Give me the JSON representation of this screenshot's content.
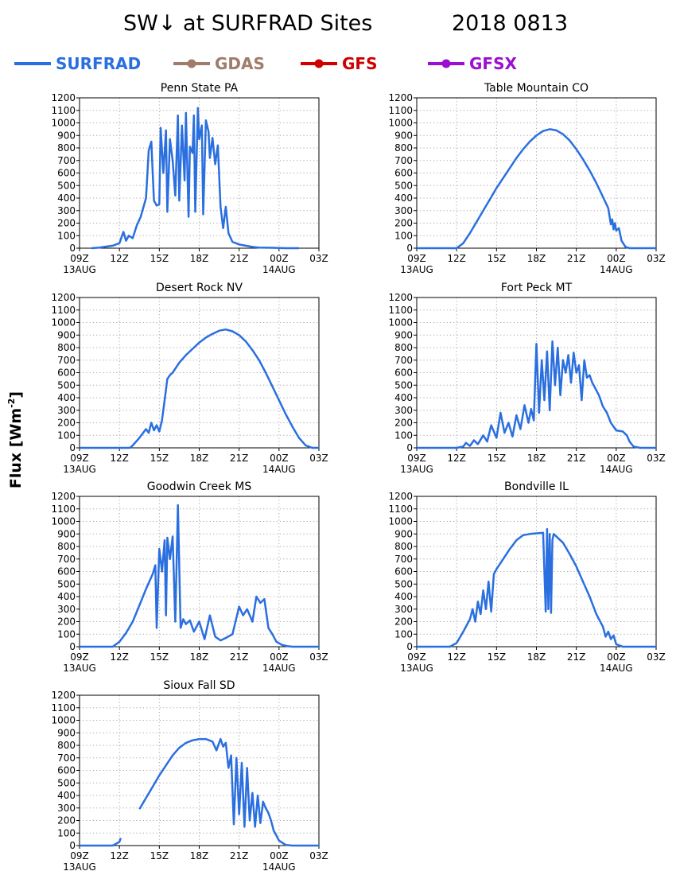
{
  "title": "SW↓ at SURFRAD Sites",
  "date": "2018 0813",
  "ylabel_text": "Flux [Wm",
  "ylabel_sup": "-2",
  "ylabel_close": "]",
  "legend": [
    {
      "name": "SURFRAD",
      "color": "#2a6fdf",
      "marker": false
    },
    {
      "name": "GDAS",
      "color": "#a07c6a",
      "marker": true
    },
    {
      "name": "GFS",
      "color": "#d00000",
      "marker": true
    },
    {
      "name": "GFSX",
      "color": "#9a0fd0",
      "marker": true
    }
  ],
  "colors": {
    "surfrad": "#2a6fdf"
  },
  "chart_data": [
    {
      "type": "line",
      "title": "Penn State PA",
      "x_ticks": [
        "09Z",
        "12Z",
        "15Z",
        "18Z",
        "21Z",
        "00Z",
        "03Z"
      ],
      "x_dates": [
        "13AUG",
        "",
        "",
        "",
        "",
        "14AUG",
        ""
      ],
      "xlim": [
        9,
        27
      ],
      "ylim": [
        0,
        1200
      ],
      "y_ticks": [
        0,
        100,
        200,
        300,
        400,
        500,
        600,
        700,
        800,
        900,
        1000,
        1100,
        1200
      ],
      "series": [
        {
          "name": "SURFRAD",
          "x": [
            9.9,
            10.5,
            11.5,
            12.0,
            12.3,
            12.5,
            12.7,
            13.0,
            13.3,
            13.6,
            14.0,
            14.2,
            14.4,
            14.5,
            14.6,
            14.8,
            15.0,
            15.1,
            15.3,
            15.5,
            15.6,
            15.8,
            16.0,
            16.2,
            16.4,
            16.5,
            16.7,
            16.9,
            17.0,
            17.2,
            17.3,
            17.5,
            17.6,
            17.7,
            17.9,
            18.0,
            18.2,
            18.3,
            18.5,
            18.7,
            18.8,
            19.0,
            19.2,
            19.4,
            19.6,
            19.8,
            20.0,
            20.2,
            20.5,
            21.0,
            21.5,
            22.0,
            22.5,
            23.5,
            24.5,
            25.5
          ],
          "y": [
            0,
            5,
            20,
            40,
            130,
            60,
            100,
            80,
            180,
            250,
            400,
            780,
            850,
            600,
            380,
            340,
            350,
            960,
            600,
            940,
            290,
            870,
            700,
            420,
            1060,
            380,
            980,
            540,
            1080,
            250,
            810,
            760,
            1060,
            290,
            1120,
            870,
            980,
            270,
            1020,
            930,
            720,
            880,
            670,
            820,
            330,
            160,
            330,
            120,
            50,
            30,
            20,
            10,
            5,
            3,
            0,
            0
          ]
        }
      ]
    },
    {
      "type": "line",
      "title": "Table Mountain CO",
      "x_ticks": [
        "09Z",
        "12Z",
        "15Z",
        "18Z",
        "21Z",
        "00Z",
        "03Z"
      ],
      "x_dates": [
        "13AUG",
        "",
        "",
        "",
        "",
        "14AUG",
        ""
      ],
      "xlim": [
        9,
        27
      ],
      "ylim": [
        0,
        1200
      ],
      "y_ticks": [
        0,
        100,
        200,
        300,
        400,
        500,
        600,
        700,
        800,
        900,
        1000,
        1100,
        1200
      ],
      "series": [
        {
          "name": "SURFRAD",
          "x": [
            9.0,
            12.0,
            12.5,
            13.0,
            13.5,
            14.0,
            14.5,
            15.0,
            15.5,
            16.0,
            16.5,
            17.0,
            17.5,
            18.0,
            18.5,
            19.0,
            19.5,
            20.0,
            20.5,
            21.0,
            21.5,
            22.0,
            22.5,
            23.0,
            23.4,
            23.6,
            23.7,
            23.8,
            23.9,
            24.0,
            24.2,
            24.4,
            24.7,
            25.0,
            27.0
          ],
          "y": [
            0,
            0,
            40,
            120,
            210,
            300,
            390,
            480,
            560,
            640,
            720,
            790,
            850,
            900,
            935,
            950,
            940,
            910,
            860,
            790,
            710,
            620,
            520,
            410,
            320,
            190,
            230,
            150,
            200,
            140,
            160,
            60,
            10,
            0,
            0
          ]
        }
      ]
    },
    {
      "type": "line",
      "title": "Desert Rock NV",
      "x_ticks": [
        "09Z",
        "12Z",
        "15Z",
        "18Z",
        "21Z",
        "00Z",
        "03Z"
      ],
      "x_dates": [
        "13AUG",
        "",
        "",
        "",
        "",
        "14AUG",
        ""
      ],
      "xlim": [
        9,
        27
      ],
      "ylim": [
        0,
        1200
      ],
      "y_ticks": [
        0,
        100,
        200,
        300,
        400,
        500,
        600,
        700,
        800,
        900,
        1000,
        1100,
        1200
      ],
      "series": [
        {
          "name": "SURFRAD",
          "x": [
            9.0,
            12.8,
            13.0,
            13.5,
            14.0,
            14.2,
            14.4,
            14.6,
            14.8,
            15.0,
            15.2,
            15.4,
            15.6,
            15.8,
            16.0,
            16.5,
            17.0,
            17.5,
            18.0,
            18.5,
            19.0,
            19.5,
            20.0,
            20.5,
            21.0,
            21.5,
            22.0,
            22.5,
            23.0,
            23.5,
            24.0,
            24.5,
            25.0,
            25.5,
            26.0,
            26.5,
            27.0
          ],
          "y": [
            0,
            0,
            20,
            80,
            150,
            120,
            200,
            140,
            180,
            130,
            220,
            380,
            550,
            580,
            600,
            680,
            740,
            790,
            840,
            880,
            910,
            935,
            945,
            930,
            900,
            850,
            780,
            700,
            600,
            490,
            380,
            270,
            170,
            80,
            20,
            0,
            0
          ]
        }
      ]
    },
    {
      "type": "line",
      "title": "Fort Peck MT",
      "x_ticks": [
        "09Z",
        "12Z",
        "15Z",
        "18Z",
        "21Z",
        "00Z",
        "03Z"
      ],
      "x_dates": [
        "13AUG",
        "",
        "",
        "",
        "",
        "14AUG",
        ""
      ],
      "xlim": [
        9,
        27
      ],
      "ylim": [
        0,
        1200
      ],
      "y_ticks": [
        0,
        100,
        200,
        300,
        400,
        500,
        600,
        700,
        800,
        900,
        1000,
        1100,
        1200
      ],
      "series": [
        {
          "name": "SURFRAD",
          "x": [
            9.0,
            12.0,
            12.5,
            12.7,
            13.0,
            13.3,
            13.6,
            14.0,
            14.3,
            14.6,
            15.0,
            15.3,
            15.6,
            15.9,
            16.2,
            16.5,
            16.8,
            17.1,
            17.4,
            17.6,
            17.8,
            18.0,
            18.2,
            18.4,
            18.6,
            18.8,
            19.0,
            19.2,
            19.4,
            19.6,
            19.8,
            20.0,
            20.2,
            20.4,
            20.6,
            20.8,
            21.0,
            21.2,
            21.4,
            21.6,
            21.8,
            22.0,
            22.2,
            22.4,
            22.7,
            23.0,
            23.3,
            23.6,
            24.0,
            24.5,
            24.8,
            25.0,
            25.3,
            25.8,
            26.2,
            27.0
          ],
          "y": [
            0,
            0,
            10,
            40,
            15,
            60,
            30,
            100,
            50,
            180,
            80,
            280,
            120,
            200,
            90,
            260,
            150,
            340,
            200,
            310,
            220,
            830,
            280,
            700,
            380,
            770,
            300,
            850,
            500,
            800,
            420,
            700,
            600,
            740,
            520,
            760,
            600,
            660,
            380,
            700,
            560,
            580,
            520,
            480,
            420,
            330,
            280,
            200,
            140,
            130,
            100,
            50,
            10,
            0,
            0,
            0
          ]
        }
      ]
    },
    {
      "type": "line",
      "title": "Goodwin Creek MS",
      "x_ticks": [
        "09Z",
        "12Z",
        "15Z",
        "18Z",
        "21Z",
        "00Z",
        "03Z"
      ],
      "x_dates": [
        "13AUG",
        "",
        "",
        "",
        "",
        "14AUG",
        ""
      ],
      "xlim": [
        9,
        27
      ],
      "ylim": [
        0,
        1200
      ],
      "y_ticks": [
        0,
        100,
        200,
        300,
        400,
        500,
        600,
        700,
        800,
        900,
        1000,
        1100,
        1200
      ],
      "series": [
        {
          "name": "SURFRAD",
          "x": [
            9.0,
            11.5,
            12.0,
            12.5,
            13.0,
            13.5,
            14.0,
            14.5,
            14.7,
            14.8,
            15.0,
            15.2,
            15.4,
            15.5,
            15.6,
            15.8,
            16.0,
            16.2,
            16.4,
            16.6,
            16.8,
            17.0,
            17.3,
            17.6,
            18.0,
            18.4,
            18.8,
            19.2,
            19.6,
            20.0,
            20.5,
            21.0,
            21.3,
            21.6,
            22.0,
            22.3,
            22.6,
            22.9,
            23.2,
            23.5,
            23.8,
            24.2,
            24.6,
            25.0,
            27.0
          ],
          "y": [
            0,
            0,
            40,
            110,
            200,
            330,
            460,
            580,
            650,
            150,
            780,
            600,
            850,
            250,
            870,
            700,
            880,
            200,
            1130,
            150,
            220,
            180,
            210,
            120,
            200,
            60,
            250,
            80,
            50,
            70,
            100,
            320,
            250,
            300,
            200,
            400,
            350,
            380,
            150,
            100,
            40,
            15,
            5,
            0,
            0
          ]
        }
      ]
    },
    {
      "type": "line",
      "title": "Bondville IL",
      "x_ticks": [
        "09Z",
        "12Z",
        "15Z",
        "18Z",
        "21Z",
        "00Z",
        "03Z"
      ],
      "x_dates": [
        "13AUG",
        "",
        "",
        "",
        "",
        "14AUG",
        ""
      ],
      "xlim": [
        9,
        27
      ],
      "ylim": [
        0,
        1200
      ],
      "y_ticks": [
        0,
        100,
        200,
        300,
        400,
        500,
        600,
        700,
        800,
        900,
        1000,
        1100,
        1200
      ],
      "series": [
        {
          "name": "SURFRAD",
          "x": [
            9.0,
            11.5,
            12.0,
            12.5,
            13.0,
            13.2,
            13.4,
            13.6,
            13.8,
            14.0,
            14.2,
            14.4,
            14.6,
            14.8,
            15.0,
            15.5,
            16.0,
            16.5,
            17.0,
            17.5,
            18.0,
            18.5,
            18.7,
            18.8,
            18.9,
            19.0,
            19.1,
            19.2,
            19.3,
            19.5,
            20.0,
            20.5,
            21.0,
            21.5,
            22.0,
            22.5,
            23.0,
            23.2,
            23.4,
            23.6,
            23.8,
            24.0,
            24.5,
            25.0,
            27.0
          ],
          "y": [
            0,
            0,
            30,
            120,
            220,
            300,
            200,
            360,
            260,
            450,
            300,
            520,
            280,
            580,
            620,
            700,
            780,
            850,
            890,
            900,
            905,
            910,
            280,
            940,
            300,
            900,
            270,
            850,
            900,
            880,
            830,
            740,
            640,
            520,
            400,
            260,
            160,
            80,
            120,
            60,
            90,
            20,
            0,
            0,
            0
          ]
        }
      ]
    },
    {
      "type": "line",
      "title": "Sioux Fall SD",
      "x_ticks": [
        "09Z",
        "12Z",
        "15Z",
        "18Z",
        "21Z",
        "00Z",
        "03Z"
      ],
      "x_dates": [
        "13AUG",
        "",
        "",
        "",
        "",
        "14AUG",
        ""
      ],
      "xlim": [
        9,
        27
      ],
      "ylim": [
        0,
        1200
      ],
      "y_ticks": [
        0,
        100,
        200,
        300,
        400,
        500,
        600,
        700,
        800,
        900,
        1000,
        1100,
        1200
      ],
      "series": [
        {
          "name": "SURFRAD",
          "x": [
            9.0,
            11.5,
            12.0,
            12.1,
            null,
            13.5,
            14.0,
            14.5,
            15.0,
            15.5,
            16.0,
            16.5,
            17.0,
            17.5,
            18.0,
            18.5,
            19.0,
            19.3,
            19.6,
            19.8,
            20.0,
            20.2,
            20.4,
            20.6,
            20.8,
            21.0,
            21.2,
            21.4,
            21.6,
            21.8,
            22.0,
            22.2,
            22.4,
            22.6,
            22.8,
            23.0,
            23.2,
            23.4,
            23.6,
            23.8,
            24.0,
            24.5,
            25.0,
            27.0
          ],
          "y": [
            0,
            0,
            30,
            60,
            null,
            290,
            380,
            470,
            560,
            640,
            720,
            780,
            820,
            840,
            850,
            850,
            830,
            760,
            850,
            790,
            820,
            620,
            720,
            170,
            700,
            250,
            660,
            150,
            620,
            200,
            420,
            150,
            400,
            180,
            350,
            300,
            260,
            200,
            120,
            80,
            40,
            5,
            0,
            0
          ]
        }
      ]
    }
  ]
}
